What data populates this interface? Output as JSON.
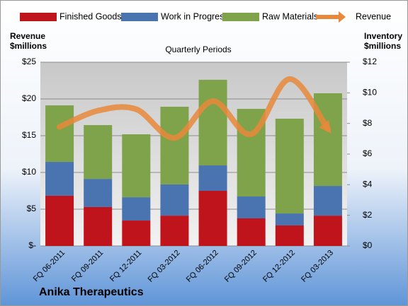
{
  "chart_data": {
    "type": "bar",
    "stacked": true,
    "title": "Quarterly Periods",
    "footer": "Anika Therapeutics",
    "y_label": [
      "Revenue",
      "$millions"
    ],
    "y2_label": [
      "Inventory",
      "$millions"
    ],
    "categories": [
      "FQ 06-2011",
      "FQ 09-2011",
      "FQ 12-2011",
      "FQ 03-2012",
      "FQ 06-2012",
      "FQ 09-2012",
      "FQ 12-2012",
      "FQ 03-2013"
    ],
    "series": [
      {
        "name": "Finished Goods",
        "color": "#c0141c",
        "axis": "y2",
        "values": [
          3.28,
          2.54,
          1.66,
          1.98,
          3.6,
          1.8,
          1.34,
          1.98
        ]
      },
      {
        "name": "Work in Progress",
        "color": "#4a74b0",
        "axis": "y2",
        "values": [
          2.21,
          1.84,
          1.52,
          2.04,
          1.66,
          1.43,
          0.78,
          1.94
        ]
      },
      {
        "name": "Raw Materials",
        "color": "#7ea34a",
        "axis": "y2",
        "values": [
          3.69,
          3.51,
          4.11,
          5.07,
          5.59,
          5.72,
          6.19,
          6.05
        ]
      },
      {
        "name": "Revenue",
        "color": "#e8883a",
        "type": "line",
        "values": [
          16.2,
          18.4,
          18.6,
          14.7,
          19.7,
          15.2,
          22.7,
          15.9
        ]
      }
    ],
    "ylim": [
      0,
      25
    ],
    "yticks": [
      {
        "value": 0,
        "label": "$-"
      },
      {
        "value": 5,
        "label": "$5"
      },
      {
        "value": 10,
        "label": "$10"
      },
      {
        "value": 15,
        "label": "$15"
      },
      {
        "value": 20,
        "label": "$20"
      },
      {
        "value": 25,
        "label": "$25"
      }
    ],
    "y2lim": [
      0,
      12
    ],
    "y2ticks": [
      {
        "value": 0,
        "label": "$0"
      },
      {
        "value": 2,
        "label": "$2"
      },
      {
        "value": 4,
        "label": "$4"
      },
      {
        "value": 6,
        "label": "$6"
      },
      {
        "value": 8,
        "label": "$8"
      },
      {
        "value": 10,
        "label": "$10"
      },
      {
        "value": 12,
        "label": "$12"
      }
    ],
    "grid": true
  }
}
